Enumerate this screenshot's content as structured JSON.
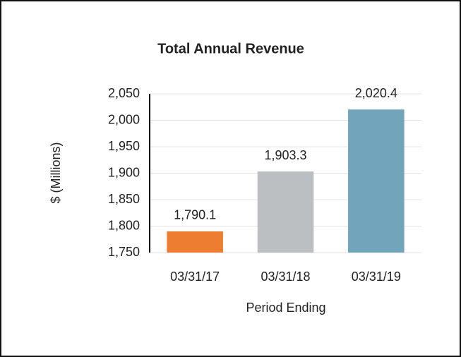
{
  "chart_data": {
    "type": "bar",
    "title": "Total Annual Revenue",
    "ylabel": "$ (Millions)",
    "xlabel": "Period Ending",
    "categories": [
      "03/31/17",
      "03/31/18",
      "03/31/19"
    ],
    "values": [
      1790.1,
      1903.3,
      2020.4
    ],
    "value_labels": [
      "1,790.1",
      "1,903.3",
      "2,020.4"
    ],
    "colors": [
      "#ed7d31",
      "#bcbfc2",
      "#72a5bb"
    ],
    "ylim": [
      1750,
      2050
    ],
    "yticks": [
      {
        "value": 1750,
        "label": "1,750"
      },
      {
        "value": 1800,
        "label": "1,800"
      },
      {
        "value": 1850,
        "label": "1,850"
      },
      {
        "value": 1900,
        "label": "1,900"
      },
      {
        "value": 1950,
        "label": "1,950"
      },
      {
        "value": 2000,
        "label": "2,000"
      },
      {
        "value": 2050,
        "label": "2,050"
      }
    ],
    "grid": true
  }
}
